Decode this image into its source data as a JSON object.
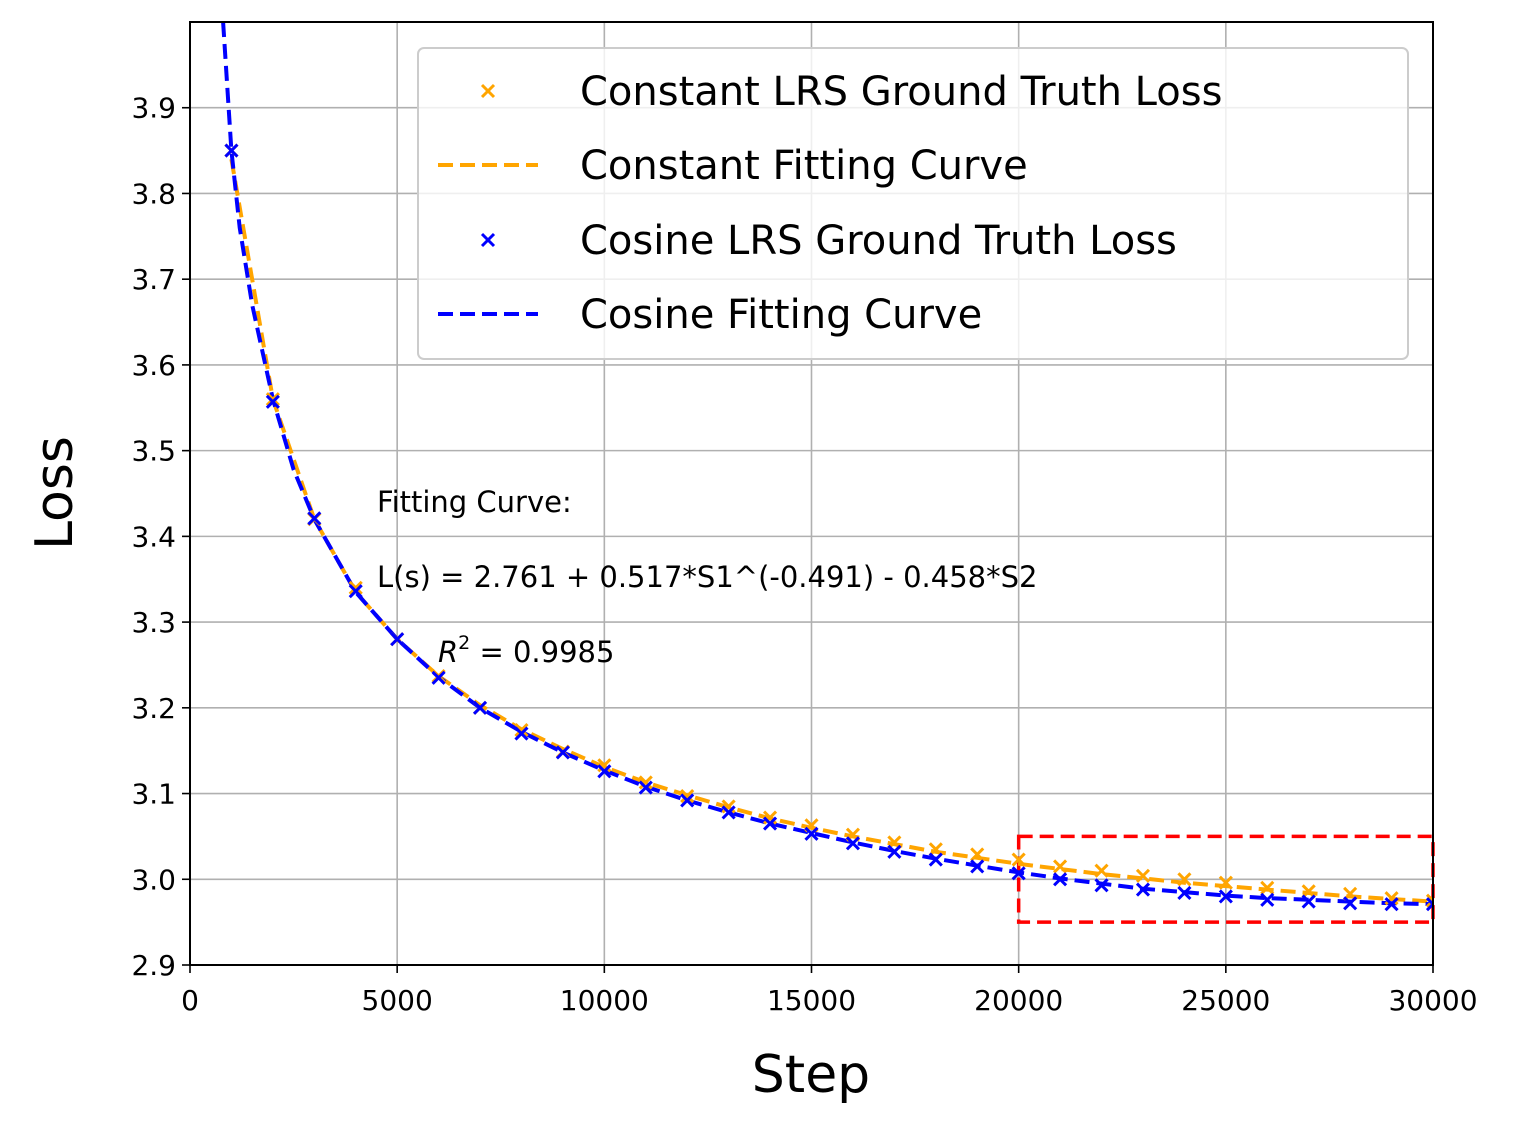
{
  "chart_data": {
    "type": "line",
    "xlabel": "Step",
    "ylabel": "Loss",
    "xlim": [
      0,
      30000
    ],
    "ylim": [
      2.9,
      4.0
    ],
    "xticks": [
      0,
      5000,
      10000,
      15000,
      20000,
      25000,
      30000
    ],
    "yticks": [
      2.9,
      3.0,
      3.1,
      3.2,
      3.3,
      3.4,
      3.5,
      3.6,
      3.7,
      3.8,
      3.9
    ],
    "grid": true,
    "legend_position": "top-right",
    "series": [
      {
        "name": "Constant LRS Ground Truth Loss",
        "kind": "markers",
        "color": "#FFA500",
        "x": [
          1000,
          2000,
          3000,
          4000,
          5000,
          6000,
          7000,
          8000,
          9000,
          10000,
          11000,
          12000,
          13000,
          14000,
          15000,
          16000,
          17000,
          18000,
          19000,
          20000,
          21000,
          22000,
          23000,
          24000,
          25000,
          26000,
          27000,
          28000,
          29000,
          30000
        ],
        "values": [
          3.85,
          3.56,
          3.42,
          3.34,
          3.28,
          3.237,
          3.2,
          3.174,
          3.149,
          3.133,
          3.113,
          3.097,
          3.085,
          3.072,
          3.063,
          3.052,
          3.043,
          3.035,
          3.029,
          3.023,
          3.015,
          3.01,
          3.004,
          3.0,
          2.996,
          2.99,
          2.986,
          2.983,
          2.978,
          2.975
        ]
      },
      {
        "name": "Constant Fitting Curve",
        "kind": "dashed-line",
        "color": "#FFA500",
        "x": [
          1000,
          2000,
          3000,
          4000,
          5000,
          6000,
          7000,
          8000,
          9000,
          10000,
          11000,
          12000,
          13000,
          14000,
          15000,
          16000,
          17000,
          18000,
          19000,
          20000,
          21000,
          22000,
          23000,
          24000,
          25000,
          26000,
          27000,
          28000,
          29000,
          30000
        ],
        "values": [
          3.84,
          3.56,
          3.42,
          3.335,
          3.28,
          3.237,
          3.203,
          3.175,
          3.152,
          3.131,
          3.113,
          3.098,
          3.084,
          3.071,
          3.06,
          3.05,
          3.041,
          3.032,
          3.025,
          3.018,
          3.012,
          3.006,
          3.001,
          2.996,
          2.992,
          2.988,
          2.984,
          2.98,
          2.977,
          2.974
        ]
      },
      {
        "name": "Cosine LRS Ground Truth Loss",
        "kind": "markers",
        "color": "#0000FF",
        "x": [
          1000,
          2000,
          3000,
          4000,
          5000,
          6000,
          7000,
          8000,
          9000,
          10000,
          11000,
          12000,
          13000,
          14000,
          15000,
          16000,
          17000,
          18000,
          19000,
          20000,
          21000,
          22000,
          23000,
          24000,
          25000,
          26000,
          27000,
          28000,
          29000,
          30000
        ],
        "values": [
          3.85,
          3.557,
          3.421,
          3.336,
          3.28,
          3.235,
          3.2,
          3.17,
          3.148,
          3.126,
          3.107,
          3.092,
          3.078,
          3.065,
          3.053,
          3.042,
          3.032,
          3.023,
          3.015,
          3.007,
          3.0,
          2.993,
          2.988,
          2.984,
          2.98,
          2.976,
          2.974,
          2.972,
          2.971,
          2.971
        ]
      },
      {
        "name": "Cosine Fitting Curve",
        "kind": "dashed-line",
        "color": "#0000FF",
        "x": [
          800,
          1000,
          1200,
          1500,
          2000,
          2500,
          3000,
          4000,
          5000,
          6000,
          7000,
          8000,
          9000,
          10000,
          11000,
          12000,
          13000,
          14000,
          15000,
          16000,
          17000,
          18000,
          19000,
          20000,
          21000,
          22000,
          23000,
          24000,
          25000,
          26000,
          27000,
          28000,
          29000,
          30000
        ],
        "values": [
          4.0,
          3.85,
          3.76,
          3.67,
          3.56,
          3.478,
          3.42,
          3.335,
          3.28,
          3.236,
          3.2,
          3.172,
          3.148,
          3.127,
          3.108,
          3.092,
          3.078,
          3.065,
          3.054,
          3.043,
          3.033,
          3.024,
          3.016,
          3.008,
          3.001,
          2.995,
          2.989,
          2.985,
          2.981,
          2.978,
          2.976,
          2.974,
          2.972,
          2.971
        ]
      }
    ],
    "annotations": {
      "line1": "Fitting Curve:",
      "line2": "L(s) = 2.761 + 0.517*S1^(-0.491) - 0.458*S2",
      "r2_symbol": "R",
      "r2_sup": "2",
      "r2_value": " = 0.9985"
    },
    "highlight_box": {
      "x_range": [
        20000,
        30000
      ],
      "y_range": [
        2.95,
        3.05
      ],
      "color": "#FF0000",
      "style": "dashed"
    }
  }
}
